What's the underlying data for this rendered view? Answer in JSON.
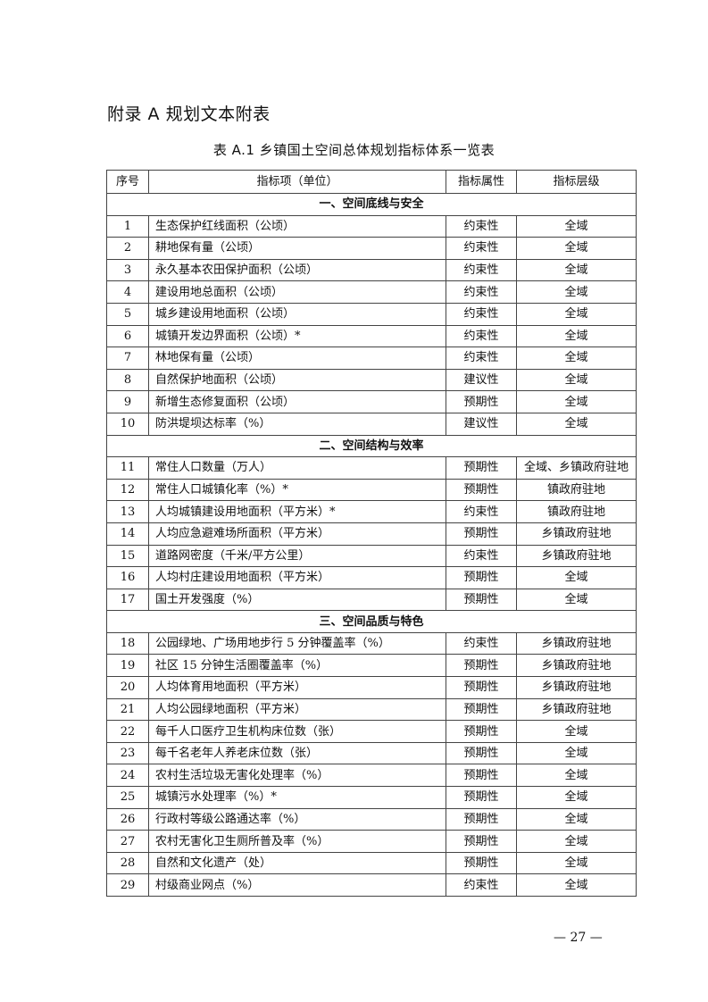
{
  "appendix_title": "附录 A   规划文本附表",
  "table_caption": "表 A.1   乡镇国土空间总体规划指标体系一览表",
  "columns": [
    "序号",
    "指标项（单位）",
    "指标属性",
    "指标层级"
  ],
  "sections": [
    {
      "title": "一、空间底线与安全",
      "rows": [
        [
          "1",
          "生态保护红线面积（公顷）",
          "约束性",
          "全域"
        ],
        [
          "2",
          "耕地保有量（公顷）",
          "约束性",
          "全域"
        ],
        [
          "3",
          "永久基本农田保护面积（公顷）",
          "约束性",
          "全域"
        ],
        [
          "4",
          "建设用地总面积（公顷）",
          "约束性",
          "全域"
        ],
        [
          "5",
          "城乡建设用地面积（公顷）",
          "约束性",
          "全域"
        ],
        [
          "6",
          "城镇开发边界面积（公顷）*",
          "约束性",
          "全域"
        ],
        [
          "7",
          "林地保有量（公顷）",
          "约束性",
          "全域"
        ],
        [
          "8",
          "自然保护地面积（公顷）",
          "建议性",
          "全域"
        ],
        [
          "9",
          "新增生态修复面积（公顷）",
          "预期性",
          "全域"
        ],
        [
          "10",
          "防洪堤坝达标率（%）",
          "建议性",
          "全域"
        ]
      ]
    },
    {
      "title": "二、空间结构与效率",
      "rows": [
        [
          "11",
          "常住人口数量（万人）",
          "预期性",
          "全域、乡镇政府驻地"
        ],
        [
          "12",
          "常住人口城镇化率（%）*",
          "预期性",
          "镇政府驻地"
        ],
        [
          "13",
          "人均城镇建设用地面积（平方米）*",
          "约束性",
          "镇政府驻地"
        ],
        [
          "14",
          "人均应急避难场所面积（平方米）",
          "预期性",
          "乡镇政府驻地"
        ],
        [
          "15",
          "道路网密度（千米/平方公里）",
          "约束性",
          "乡镇政府驻地"
        ],
        [
          "16",
          "人均村庄建设用地面积（平方米）",
          "预期性",
          "全域"
        ],
        [
          "17",
          "国土开发强度（%）",
          "预期性",
          "全域"
        ]
      ]
    },
    {
      "title": "三、空间品质与特色",
      "rows": [
        [
          "18",
          "公园绿地、广场用地步行 5 分钟覆盖率（%）",
          "约束性",
          "乡镇政府驻地"
        ],
        [
          "19",
          "社区 15 分钟生活圈覆盖率（%）",
          "预期性",
          "乡镇政府驻地"
        ],
        [
          "20",
          "人均体育用地面积（平方米）",
          "预期性",
          "乡镇政府驻地"
        ],
        [
          "21",
          "人均公园绿地面积（平方米）",
          "预期性",
          "乡镇政府驻地"
        ],
        [
          "22",
          "每千人口医疗卫生机构床位数（张）",
          "预期性",
          "全域"
        ],
        [
          "23",
          "每千名老年人养老床位数（张）",
          "预期性",
          "全域"
        ],
        [
          "24",
          "农村生活垃圾无害化处理率（%）",
          "预期性",
          "全域"
        ],
        [
          "25",
          "城镇污水处理率（%）*",
          "预期性",
          "全域"
        ],
        [
          "26",
          "行政村等级公路通达率（%）",
          "预期性",
          "全域"
        ],
        [
          "27",
          "农村无害化卫生厕所普及率（%）",
          "预期性",
          "全域"
        ],
        [
          "28",
          "自然和文化遗产（处）",
          "预期性",
          "全域"
        ],
        [
          "29",
          "村级商业网点（%）",
          "约束性",
          "全域"
        ]
      ]
    }
  ],
  "page_number": "— 27 —"
}
